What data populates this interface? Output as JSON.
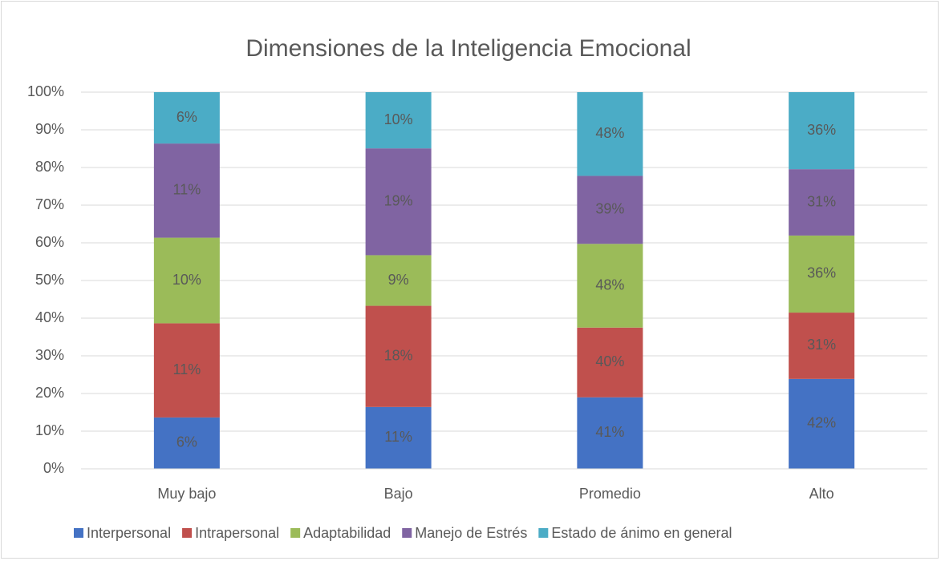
{
  "chart_data": {
    "type": "bar",
    "stacking": "percent",
    "title": "Dimensiones de la Inteligencia Emocional",
    "categories": [
      "Muy bajo",
      "Bajo",
      "Promedio",
      "Alto"
    ],
    "series": [
      {
        "name": "Interpersonal",
        "color": "#4472c4",
        "values": [
          6,
          11,
          41,
          42
        ],
        "value_labels": [
          "6%",
          "11%",
          "41%",
          "42%"
        ]
      },
      {
        "name": "Intrapersonal",
        "color": "#c0504d",
        "values": [
          11,
          18,
          40,
          31
        ],
        "value_labels": [
          "11%",
          "18%",
          "40%",
          "31%"
        ]
      },
      {
        "name": "Adaptabilidad",
        "color": "#9bbb59",
        "values": [
          10,
          9,
          48,
          36
        ],
        "value_labels": [
          "10%",
          "9%",
          "48%",
          "36%"
        ]
      },
      {
        "name": "Manejo de Estrés",
        "color": "#8064a2",
        "values": [
          11,
          19,
          39,
          31
        ],
        "value_labels": [
          "11%",
          "19%",
          "39%",
          "31%"
        ]
      },
      {
        "name": "Estado de ánimo en general",
        "color": "#4bacc6",
        "values": [
          6,
          10,
          48,
          36
        ],
        "value_labels": [
          "6%",
          "10%",
          "48%",
          "36%"
        ]
      }
    ],
    "ylim": [
      0,
      100
    ],
    "yticks": [
      {
        "value": 0,
        "label": "0%"
      },
      {
        "value": 10,
        "label": "10%"
      },
      {
        "value": 20,
        "label": "20%"
      },
      {
        "value": 30,
        "label": "30%"
      },
      {
        "value": 40,
        "label": "40%"
      },
      {
        "value": 50,
        "label": "50%"
      },
      {
        "value": 60,
        "label": "60%"
      },
      {
        "value": 70,
        "label": "70%"
      },
      {
        "value": 80,
        "label": "80%"
      },
      {
        "value": 90,
        "label": "90%"
      },
      {
        "value": 100,
        "label": "100%"
      }
    ],
    "grid": true,
    "legend": "bottom"
  }
}
